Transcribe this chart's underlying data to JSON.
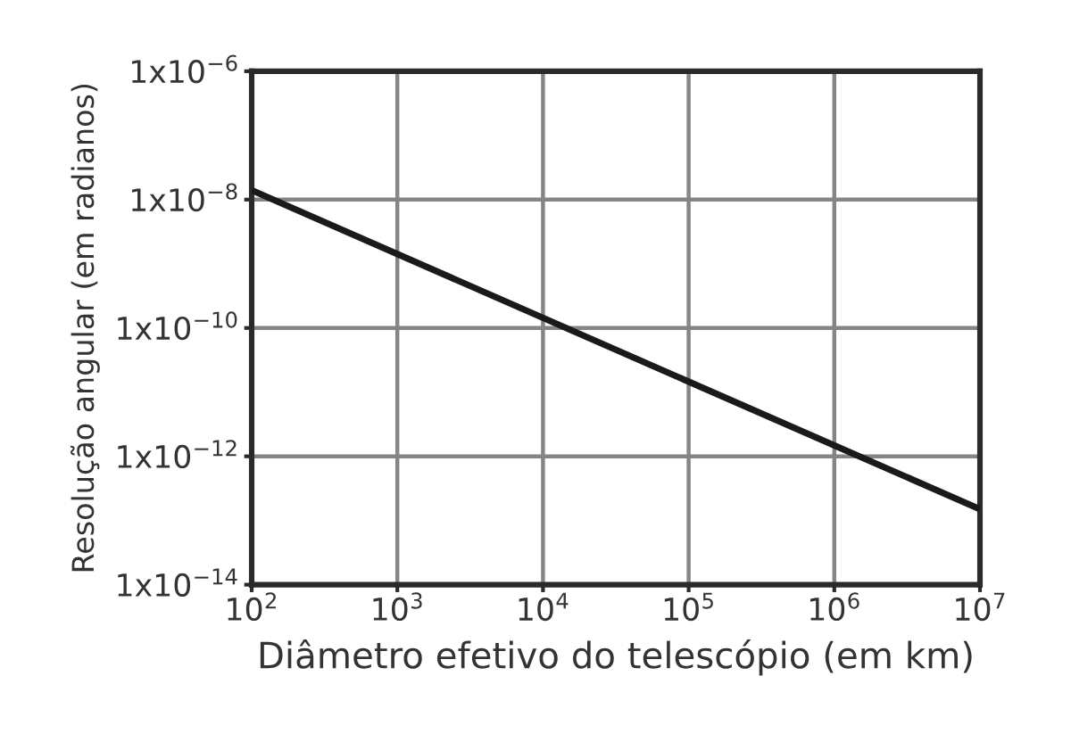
{
  "chart_data": {
    "type": "line",
    "xlabel": "Diâmetro efetivo do telescópio (em km)",
    "ylabel": "Resolução angular (em radianos)",
    "log": "xy",
    "grid": true,
    "marker": "none",
    "line_style": "solid",
    "x": [
      100,
      10000000
    ],
    "series": [
      {
        "color": "#1a1a1a",
        "values": [
          1.4e-08,
          1.5e-13
        ]
      }
    ],
    "xlim": [
      100,
      10000000
    ],
    "ylim": [
      1e-14,
      1e-06
    ],
    "xticks": [
      {
        "value": 100,
        "label": "10$^{2}$"
      },
      {
        "value": 1000,
        "label": "10$^{3}$"
      },
      {
        "value": 10000,
        "label": "10$^{4}$"
      },
      {
        "value": 100000,
        "label": "10$^{5}$"
      },
      {
        "value": 1000000,
        "label": "10$^{6}$"
      },
      {
        "value": 10000000,
        "label": "10$^{7}$"
      }
    ],
    "yticks": [
      {
        "value": 1e-14,
        "label": "1x10$^{−14}$"
      },
      {
        "value": 1e-12,
        "label": "1x10$^{−12}$"
      },
      {
        "value": 1e-10,
        "label": "1x10$^{−10}$"
      },
      {
        "value": 1e-08,
        "label": "1x10$^{−8}$"
      },
      {
        "value": 1e-06,
        "label": "1x10$^{−6}$"
      }
    ]
  }
}
